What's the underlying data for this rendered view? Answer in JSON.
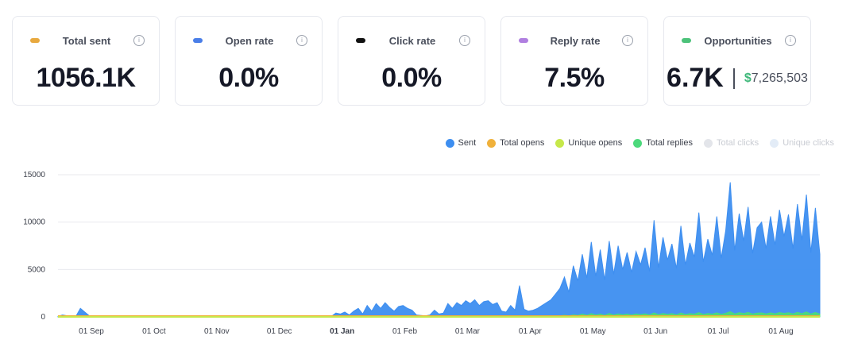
{
  "cards": [
    {
      "label": "Total sent",
      "value": "1056.1K",
      "color": "#e8a93f"
    },
    {
      "label": "Open rate",
      "value": "0.0%",
      "color": "#4a7ee8"
    },
    {
      "label": "Click rate",
      "value": "0.0%",
      "color": "#111111"
    },
    {
      "label": "Reply rate",
      "value": "7.5%",
      "color": "#b07fe0"
    },
    {
      "label": "Opportunities",
      "value": "6.7K",
      "money_symbol": "$",
      "money_value": "7,265,503",
      "color": "#4cc27a"
    }
  ],
  "info_glyph": "i",
  "chart_data": {
    "type": "area",
    "y_ticks": [
      "15000",
      "10000",
      "5000",
      "0"
    ],
    "ylim": [
      0,
      15000
    ],
    "x_ticks": [
      "01 Sep",
      "01 Oct",
      "01 Nov",
      "01 Dec",
      "01 Jan",
      "01 Feb",
      "01 Mar",
      "01 Apr",
      "01 May",
      "01 Jun",
      "01 Jul",
      "01 Aug"
    ],
    "x_ticks_bold": [
      "01 Jan"
    ],
    "legend_placement": "top-right",
    "grid": true,
    "series": [
      {
        "name": "Sent",
        "color": "#3d8ef0",
        "values": [
          50,
          200,
          120,
          80,
          60,
          900,
          500,
          100,
          50,
          50,
          40,
          40,
          40,
          40,
          40,
          40,
          40,
          40,
          40,
          40,
          40,
          40,
          40,
          40,
          40,
          40,
          40,
          40,
          40,
          40,
          40,
          40,
          40,
          40,
          40,
          40,
          40,
          40,
          40,
          40,
          40,
          40,
          40,
          40,
          40,
          40,
          40,
          40,
          40,
          40,
          40,
          40,
          40,
          40,
          40,
          40,
          40,
          40,
          40,
          40,
          40,
          50,
          400,
          300,
          500,
          200,
          600,
          900,
          300,
          1200,
          600,
          1400,
          900,
          1500,
          1000,
          600,
          1100,
          1200,
          900,
          700,
          200,
          150,
          100,
          200,
          700,
          300,
          400,
          1400,
          900,
          1500,
          1200,
          1700,
          1400,
          1800,
          1200,
          1600,
          1700,
          1300,
          1500,
          600,
          500,
          1200,
          700,
          3300,
          800,
          600,
          700,
          900,
          1200,
          1500,
          1800,
          2400,
          3000,
          4200,
          2600,
          5400,
          3800,
          6600,
          4100,
          7900,
          4300,
          7100,
          3900,
          8000,
          4500,
          7500,
          5000,
          6800,
          4700,
          6900,
          5500,
          7300,
          4800,
          10200,
          5200,
          8400,
          6000,
          7700,
          5100,
          9600,
          5500,
          7800,
          6300,
          11000,
          5800,
          8200,
          6500,
          10600,
          6200,
          9100,
          14200,
          7000,
          10900,
          8000,
          11600,
          6700,
          9400,
          10000,
          7200,
          10600,
          7600,
          11300,
          8500,
          10800,
          7200,
          11900,
          8100,
          12900,
          6800,
          11500,
          6600
        ]
      },
      {
        "name": "Total opens",
        "color": "#f0b13b",
        "values": []
      },
      {
        "name": "Unique opens",
        "color": "#c6e84a",
        "values": []
      },
      {
        "name": "Total replies",
        "color": "#4cd97b",
        "values": [
          0,
          10,
          10,
          10,
          10,
          20,
          20,
          10,
          10,
          10,
          10,
          10,
          10,
          10,
          10,
          10,
          10,
          10,
          10,
          10,
          10,
          10,
          10,
          10,
          10,
          10,
          10,
          10,
          10,
          10,
          10,
          10,
          10,
          10,
          10,
          10,
          10,
          10,
          10,
          10,
          10,
          10,
          10,
          10,
          10,
          10,
          10,
          10,
          10,
          10,
          10,
          10,
          10,
          10,
          10,
          10,
          10,
          10,
          10,
          10,
          10,
          10,
          20,
          20,
          30,
          20,
          30,
          40,
          20,
          50,
          30,
          60,
          40,
          60,
          40,
          30,
          50,
          50,
          40,
          30,
          20,
          20,
          10,
          20,
          30,
          20,
          30,
          60,
          40,
          60,
          50,
          70,
          60,
          70,
          50,
          60,
          70,
          50,
          60,
          30,
          30,
          50,
          30,
          120,
          40,
          30,
          30,
          40,
          50,
          60,
          70,
          100,
          120,
          180,
          120,
          220,
          160,
          300,
          170,
          340,
          200,
          300,
          170,
          350,
          200,
          320,
          230,
          300,
          210,
          310,
          250,
          330,
          220,
          420,
          240,
          360,
          270,
          340,
          230,
          400,
          250,
          340,
          290,
          450,
          260,
          350,
          290,
          430,
          280,
          380,
          550,
          310,
          440,
          350,
          470,
          300,
          400,
          420,
          320,
          430,
          330,
          460,
          370,
          440,
          320,
          480,
          350,
          520,
          300,
          470,
          290
        ]
      },
      {
        "name": "Total clicks",
        "color": "#e3e5ea",
        "faded": true,
        "values": []
      },
      {
        "name": "Unique clicks",
        "color": "#e3ecf7",
        "faded": true,
        "values": []
      }
    ]
  }
}
